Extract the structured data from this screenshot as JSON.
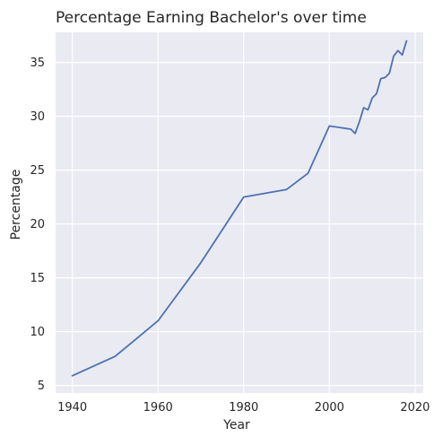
{
  "chart_data": {
    "type": "line",
    "title": "Percentage Earning Bachelor's over time",
    "xlabel": "Year",
    "ylabel": "Percentage",
    "xlim": [
      1936.1,
      2021.9
    ],
    "ylim": [
      4.3,
      37.8
    ],
    "x_ticks": [
      1940,
      1960,
      1980,
      2000,
      2020
    ],
    "y_ticks": [
      5,
      10,
      15,
      20,
      25,
      30,
      35
    ],
    "grid": true,
    "legend": "none",
    "colors": {
      "line": "#4c72b0",
      "background": "#eaeaf2",
      "grid": "#ffffff",
      "text": "#262626"
    },
    "series": [
      {
        "x": [
          1940,
          1950,
          1960,
          1970,
          1980,
          1990,
          1995,
          2000,
          2005,
          2006,
          2007,
          2008,
          2009,
          2010,
          2011,
          2012,
          2013,
          2014,
          2015,
          2016,
          2017,
          2018
        ],
        "values": [
          5.9,
          7.7,
          11.0,
          16.4,
          22.5,
          23.2,
          24.7,
          29.1,
          28.8,
          28.4,
          29.5,
          30.8,
          30.6,
          31.7,
          32.1,
          33.5,
          33.6,
          34.0,
          35.6,
          36.1,
          35.7,
          37.0
        ]
      }
    ]
  }
}
